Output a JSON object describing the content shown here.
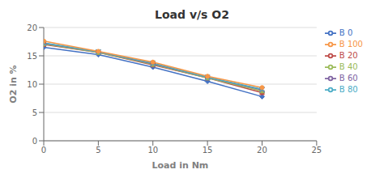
{
  "chart_data": {
    "type": "line",
    "title": "Load v/s O2",
    "xlabel": "Load in Nm",
    "ylabel": "O2 in %",
    "x": [
      0,
      5,
      10,
      15,
      20
    ],
    "xlim": [
      0,
      25
    ],
    "ylim": [
      0,
      20
    ],
    "xticks": [
      0,
      5,
      10,
      15,
      20,
      25
    ],
    "yticks": [
      0,
      5,
      10,
      15,
      20
    ],
    "grid": true,
    "legend": "right",
    "series": [
      {
        "name": "B 0",
        "color": "#4472C4",
        "marker": "diamond",
        "values": [
          16.5,
          15.2,
          13.0,
          10.5,
          7.8
        ]
      },
      {
        "name": "B 20",
        "color": "#BE4B48",
        "marker": "square",
        "values": [
          17.0,
          15.6,
          13.4,
          11.1,
          8.5
        ]
      },
      {
        "name": "B 40",
        "color": "#9BBB59",
        "marker": "triangle",
        "values": [
          17.1,
          15.6,
          13.5,
          11.1,
          8.8
        ]
      },
      {
        "name": "B 60",
        "color": "#8064A2",
        "marker": "cross",
        "values": [
          17.2,
          15.7,
          13.6,
          11.2,
          9.0
        ]
      },
      {
        "name": "B 80",
        "color": "#4BACC6",
        "marker": "cross",
        "values": [
          17.3,
          15.7,
          13.7,
          11.2,
          9.1
        ]
      },
      {
        "name": "B 100",
        "color": "#F79646",
        "marker": "circle",
        "values": [
          17.6,
          15.8,
          13.9,
          11.4,
          9.4
        ]
      }
    ]
  }
}
